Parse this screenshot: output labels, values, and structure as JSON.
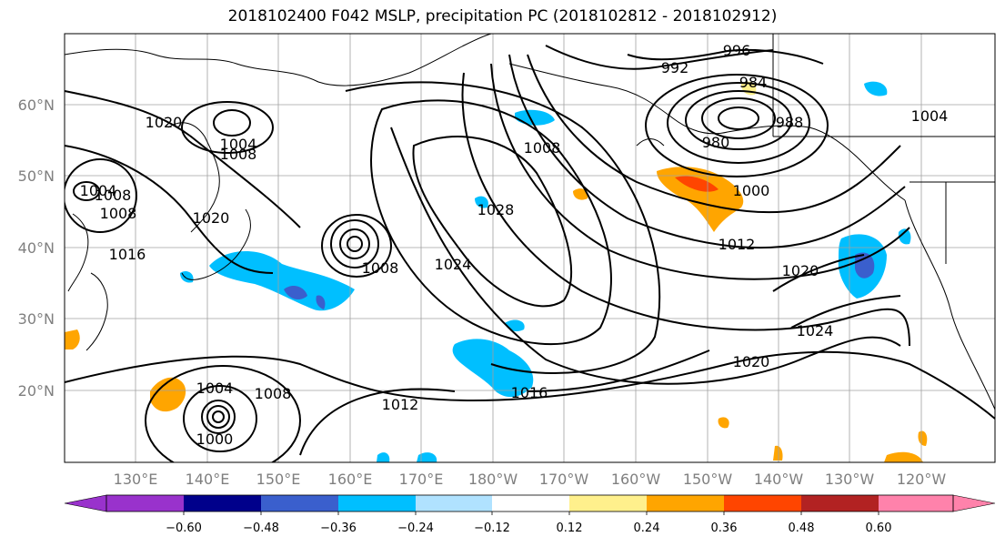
{
  "title": "2018102400 F042 MSLP, precipitation PC (2018102812 - 2018102912)",
  "map": {
    "lon_ticks": [
      "130°E",
      "140°E",
      "150°E",
      "160°E",
      "170°E",
      "180°W",
      "170°W",
      "160°W",
      "150°W",
      "140°W",
      "130°W",
      "120°W"
    ],
    "lat_ticks": [
      "60°N",
      "50°N",
      "40°N",
      "30°N",
      "20°N"
    ],
    "contour_labels": [
      "996",
      "992",
      "984",
      "980",
      "988",
      "1004",
      "1000",
      "1012",
      "1020",
      "1024",
      "1020",
      "1016",
      "1012",
      "1008",
      "1004",
      "1000",
      "1008",
      "1024",
      "1028",
      "1008",
      "1008",
      "1004",
      "1008",
      "1020",
      "1004",
      "1008",
      "1016",
      "1020"
    ],
    "isobar_color": "#000000",
    "land_outline_color": "#000000",
    "grid_color": "#a0a0a0"
  },
  "colorbar": {
    "ticks": [
      "−0.60",
      "−0.48",
      "−0.36",
      "−0.24",
      "−0.12",
      "0.12",
      "0.24",
      "0.36",
      "0.48",
      "0.60"
    ],
    "colors": [
      "#9932cc",
      "#00008b",
      "#3a5fcd",
      "#00bfff",
      "#b0e2ff",
      "#ffffff",
      "#fff08c",
      "#ffa500",
      "#ff4500",
      "#b22222",
      "#ff82ab"
    ]
  }
}
